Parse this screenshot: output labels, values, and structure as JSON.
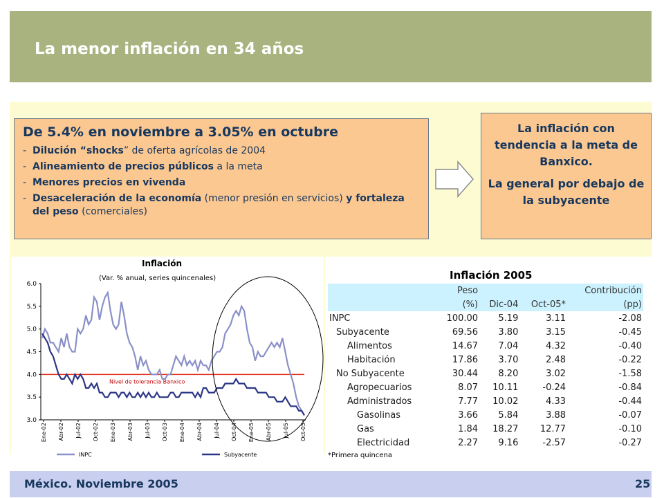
{
  "slide": {
    "title": "La menor inflación en 34 años",
    "footer_left": "México. Noviembre 2005",
    "page_number": "25"
  },
  "left_box": {
    "heading": "De 5.4% en noviembre a 3.05% en octubre",
    "bullets": [
      {
        "dash": "-",
        "bold": "Dilución “shocks",
        "rest": "” de oferta agrícolas de 2004"
      },
      {
        "dash": "-",
        "bold": "Alineamiento de precios públicos",
        "rest": " a la meta"
      },
      {
        "dash": "-",
        "bold": "Menores precios en vivenda",
        "rest": ""
      },
      {
        "dash": "-",
        "bold": "Desaceleración de la economía",
        "rest": " (menor presión en servicios) ",
        "bold2": "y fortaleza del peso",
        "rest2": " (comerciales)"
      }
    ]
  },
  "right_box": {
    "line1": "La inflación con tendencia a la meta de Banxico.",
    "line2": "La general por debajo de la subyacente"
  },
  "chart_data": {
    "type": "line",
    "title": "Inflación",
    "subtitle": "(Var. % anual, series quincenales)",
    "ylim": [
      3.0,
      6.0
    ],
    "yticks": [
      "3.0",
      "3.5",
      "4.0",
      "4.5",
      "5.0",
      "5.5",
      "6.0"
    ],
    "x_ticks": [
      "Ene-02",
      "Abr-02",
      "Jul-02",
      "Oct-02",
      "Ene-03",
      "Abr-03",
      "Jul-03",
      "Oct-03",
      "Ene-04",
      "Abr-04",
      "Jul-04",
      "Oct-04",
      "Ene-05",
      "Abr-05",
      "Jul-05",
      "Oct-05"
    ],
    "reference_label": "Nivel de tolerancia Banxico",
    "reference_value": 4.0,
    "series": [
      {
        "name": "INPC",
        "color": "#8a90c8",
        "values": [
          4.8,
          5.0,
          4.9,
          4.7,
          4.7,
          4.6,
          4.5,
          4.8,
          4.6,
          4.9,
          4.6,
          4.5,
          4.5,
          5.0,
          4.9,
          5.0,
          5.3,
          5.1,
          5.2,
          5.7,
          5.6,
          5.2,
          5.5,
          5.7,
          5.8,
          5.4,
          5.1,
          5.0,
          5.1,
          5.6,
          5.3,
          4.9,
          4.7,
          4.6,
          4.4,
          4.1,
          4.4,
          4.2,
          4.3,
          4.1,
          4.0,
          4.0,
          4.0,
          4.1,
          3.9,
          3.9,
          4.0,
          4.0,
          4.2,
          4.4,
          4.3,
          4.2,
          4.4,
          4.2,
          4.3,
          4.2,
          4.3,
          4.1,
          4.3,
          4.2,
          4.2,
          4.1,
          4.3,
          4.4,
          4.5,
          4.5,
          4.6,
          4.9,
          5.0,
          5.1,
          5.3,
          5.4,
          5.3,
          5.5,
          5.4,
          5.0,
          4.7,
          4.6,
          4.3,
          4.5,
          4.4,
          4.4,
          4.5,
          4.6,
          4.7,
          4.6,
          4.7,
          4.6,
          4.8,
          4.5,
          4.2,
          4.0,
          3.8,
          3.5,
          3.3,
          3.2,
          3.1
        ]
      },
      {
        "name": "Subyacente",
        "color": "#2c3585",
        "values": [
          4.9,
          4.8,
          4.7,
          4.5,
          4.4,
          4.2,
          4.0,
          3.9,
          3.9,
          4.0,
          3.9,
          3.8,
          4.0,
          3.9,
          4.0,
          3.9,
          3.7,
          3.7,
          3.8,
          3.7,
          3.8,
          3.6,
          3.6,
          3.5,
          3.5,
          3.6,
          3.6,
          3.6,
          3.5,
          3.6,
          3.6,
          3.5,
          3.6,
          3.5,
          3.5,
          3.6,
          3.5,
          3.6,
          3.5,
          3.6,
          3.5,
          3.5,
          3.6,
          3.5,
          3.5,
          3.5,
          3.5,
          3.6,
          3.6,
          3.5,
          3.5,
          3.6,
          3.6,
          3.6,
          3.6,
          3.6,
          3.5,
          3.6,
          3.5,
          3.7,
          3.7,
          3.6,
          3.6,
          3.6,
          3.7,
          3.7,
          3.7,
          3.8,
          3.8,
          3.8,
          3.8,
          3.9,
          3.8,
          3.8,
          3.8,
          3.7,
          3.7,
          3.7,
          3.7,
          3.6,
          3.6,
          3.6,
          3.6,
          3.5,
          3.5,
          3.5,
          3.4,
          3.4,
          3.4,
          3.5,
          3.4,
          3.3,
          3.3,
          3.3,
          3.2,
          3.2,
          3.1
        ]
      }
    ]
  },
  "table": {
    "title": "Inflación 2005",
    "header_row1": [
      "",
      "Peso",
      "",
      "",
      "Contribución"
    ],
    "header_row2": [
      "",
      "(%)",
      "Dic-04",
      "Oct-05*",
      "(pp)"
    ],
    "rows": [
      {
        "label": "INPC",
        "level": 0,
        "peso": "100.00",
        "dic04": "5.19",
        "oct05": "3.11",
        "contrib": "-2.08"
      },
      {
        "label": "Subyacente",
        "level": 1,
        "peso": "69.56",
        "dic04": "3.80",
        "oct05": "3.15",
        "contrib": "-0.45"
      },
      {
        "label": "Alimentos",
        "level": 2,
        "peso": "14.67",
        "dic04": "7.04",
        "oct05": "4.32",
        "contrib": "-0.40"
      },
      {
        "label": "Habitación",
        "level": 2,
        "peso": "17.86",
        "dic04": "3.70",
        "oct05": "2.48",
        "contrib": "-0.22"
      },
      {
        "label": "No Subyacente",
        "level": 1,
        "peso": "30.44",
        "dic04": "8.20",
        "oct05": "3.02",
        "contrib": "-1.58"
      },
      {
        "label": "Agropecuarios",
        "level": 2,
        "peso": "8.07",
        "dic04": "10.11",
        "oct05": "-0.24",
        "contrib": "-0.84"
      },
      {
        "label": "Administrados",
        "level": 2,
        "peso": "7.77",
        "dic04": "10.02",
        "oct05": "4.33",
        "contrib": "-0.44"
      },
      {
        "label": "Gasolinas",
        "level": 3,
        "peso": "3.66",
        "dic04": "5.84",
        "oct05": "3.88",
        "contrib": "-0.07"
      },
      {
        "label": "Gas",
        "level": 3,
        "peso": "1.84",
        "dic04": "18.27",
        "oct05": "12.77",
        "contrib": "-0.10"
      },
      {
        "label": "Electricidad",
        "level": 3,
        "peso": "2.27",
        "dic04": "9.16",
        "oct05": "-2.57",
        "contrib": "-0.27"
      }
    ],
    "footnote": "*Primera quincena"
  }
}
